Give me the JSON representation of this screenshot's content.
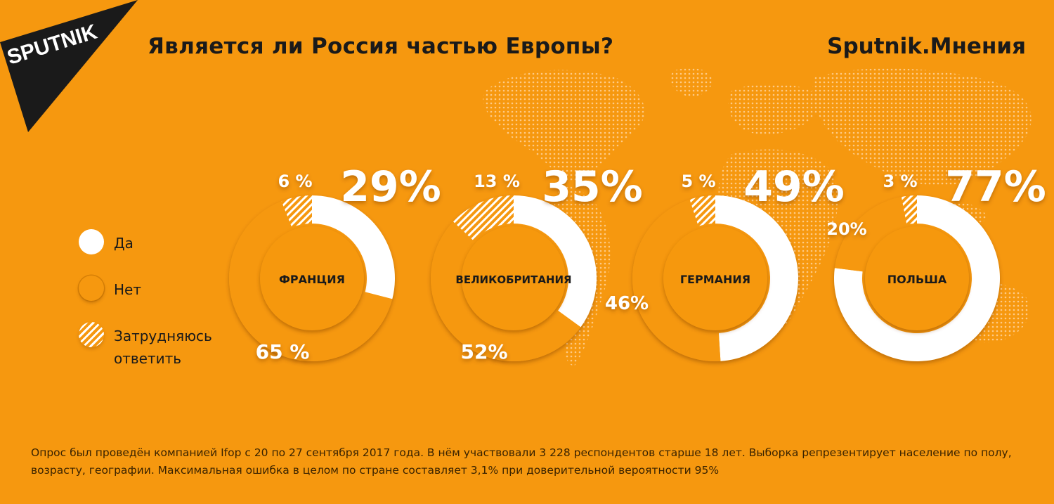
{
  "header": {
    "title": "Является ли Россия частью Европы?",
    "brand": "Sputnik.Мнения",
    "logo_text": "SPUTNIK"
  },
  "colors": {
    "background": "#F6980F",
    "yes": "#FFFFFF",
    "no": "#F6980F",
    "text": "#1a1a1a"
  },
  "legend": {
    "items": [
      {
        "label": "Да",
        "pattern": "solid-white"
      },
      {
        "label": "Нет",
        "pattern": "solid-orange"
      },
      {
        "label": "Затрудняюсь ответить",
        "pattern": "hatched"
      }
    ]
  },
  "chart_data": {
    "type": "pie",
    "variant": "donut",
    "series_order": [
      "Да",
      "Затрудняюсь ответить",
      "Нет"
    ],
    "charts": [
      {
        "name": "ФРАНЦИЯ",
        "yes": 29,
        "no": 65,
        "dont_know": 6,
        "labels": {
          "yes": "29%",
          "no": "65 %",
          "dont_know": "6 %"
        }
      },
      {
        "name": "ВЕЛИКОБРИТАНИЯ",
        "yes": 35,
        "no": 52,
        "dont_know": 13,
        "labels": {
          "yes": "35%",
          "no": "52%",
          "dont_know": "13 %"
        }
      },
      {
        "name": "ГЕРМАНИЯ",
        "yes": 49,
        "no": 46,
        "dont_know": 5,
        "labels": {
          "yes": "49%",
          "no": "46%",
          "dont_know": "5 %"
        }
      },
      {
        "name": "ПОЛЬША",
        "yes": 77,
        "no": 20,
        "dont_know": 3,
        "labels": {
          "yes": "77%",
          "no": "20%",
          "dont_know": "3 %"
        }
      }
    ]
  },
  "footnote": "Опрос был проведён компанией Ifop с 20 по 27 сентября 2017 года. В нём участвовали 3 228 респондентов старше 18 лет. Выборка репрезентирует население по полу, возрасту, географии. Максимальная ошибка в целом по стране составляет 3,1% при доверительной вероятности 95%"
}
